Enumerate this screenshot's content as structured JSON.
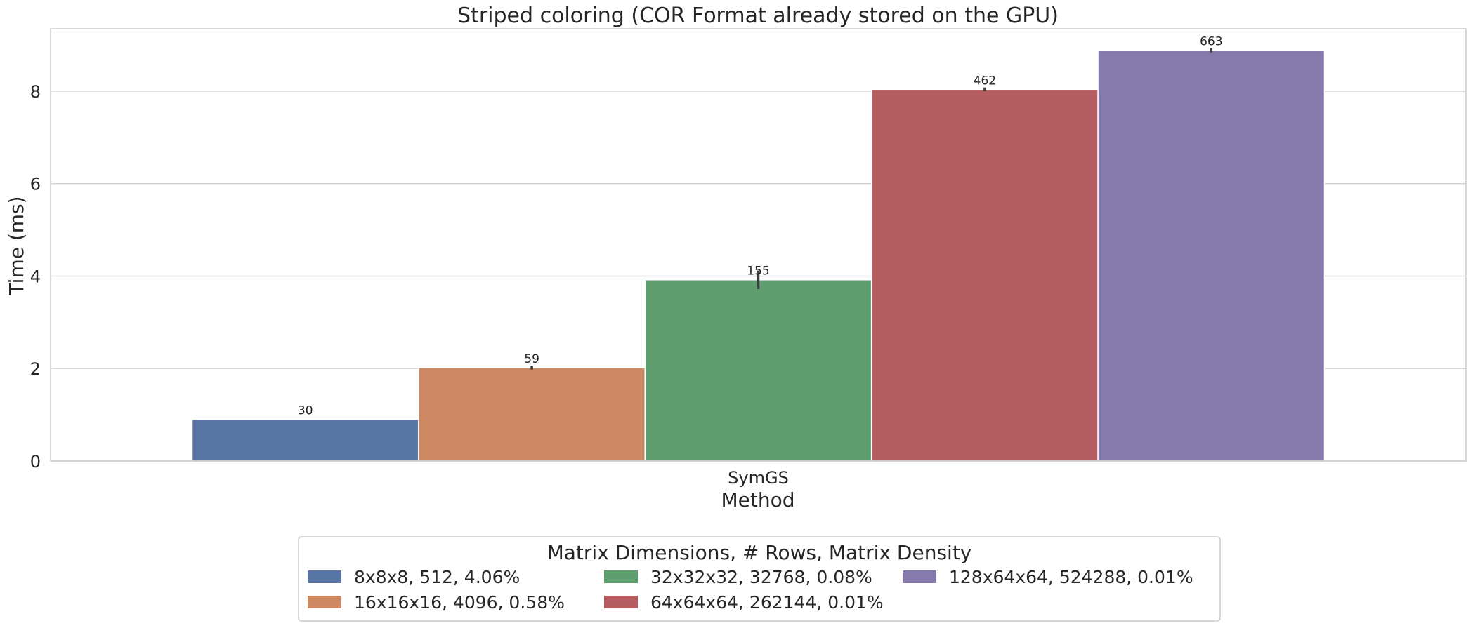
{
  "chart_data": {
    "type": "bar",
    "title": "Striped coloring (COR Format already stored on the GPU)",
    "xlabel": "Method",
    "ylabel": "Time (ms)",
    "categories": [
      "SymGS"
    ],
    "ylim": [
      0,
      9.35
    ],
    "yticks": [
      0,
      2,
      4,
      6,
      8
    ],
    "grid": true,
    "legend_title": "Matrix Dimensions, # Rows, Matrix Density",
    "legend_placement": "bottom-center",
    "series": [
      {
        "name": "8x8x8, 512, 4.06%",
        "values": [
          0.9
        ],
        "error": [
          0.0
        ],
        "label": "30",
        "color": "#5975a4"
      },
      {
        "name": "16x16x16, 4096, 0.58%",
        "values": [
          2.02
        ],
        "error": [
          0.04
        ],
        "label": "59",
        "color": "#cc8963"
      },
      {
        "name": "32x32x32, 32768, 0.08%",
        "values": [
          3.92
        ],
        "error": [
          0.2
        ],
        "label": "155",
        "color": "#5f9e6e"
      },
      {
        "name": "64x64x64, 262144, 0.01%",
        "values": [
          8.04
        ],
        "error": [
          0.04
        ],
        "label": "462",
        "color": "#b55d60"
      },
      {
        "name": "128x64x64, 524288, 0.01%",
        "values": [
          8.89
        ],
        "error": [
          0.05
        ],
        "label": "663",
        "color": "#857aab"
      }
    ]
  }
}
